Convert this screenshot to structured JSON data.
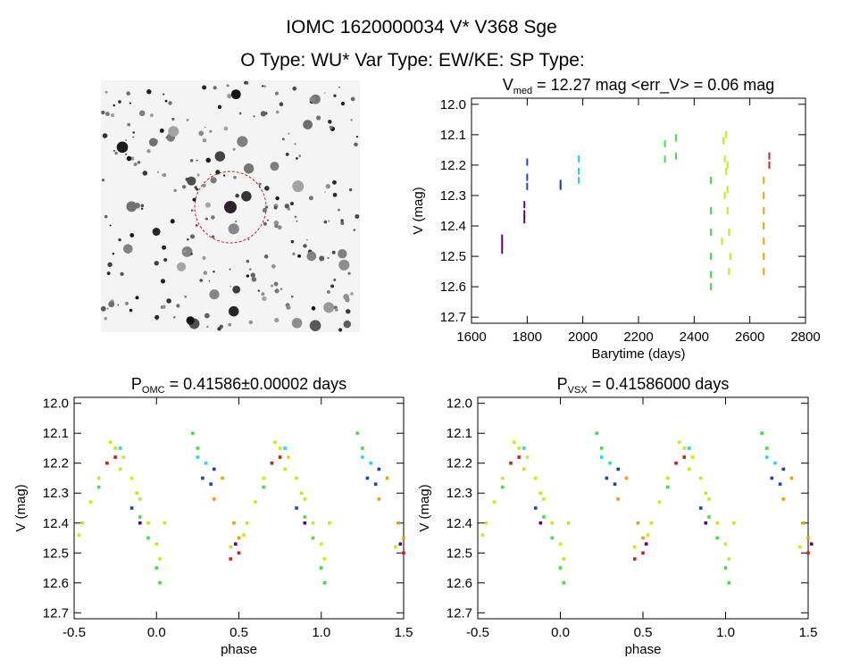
{
  "header": {
    "line1": "IOMC 1620000034    V* V368 Sge",
    "line2": "O Type: WU*  Var Type: EW/KE:  SP Type:"
  },
  "chart_data": [
    {
      "type": "scatter",
      "title": {
        "main": "V",
        "sub": "med",
        "rest": " = 12.27 mag <err_V> = 0.06 mag"
      },
      "x_label": "Barytime (days)",
      "y_label": "V (mag)",
      "xlim": [
        1600,
        2800
      ],
      "xticks": [
        1600,
        1800,
        2000,
        2200,
        2400,
        2600,
        2800
      ],
      "ylim": [
        11.98,
        12.72
      ],
      "y_inverted": true,
      "yticks": [
        {
          "value": 12,
          "label": "12.0"
        },
        12.1,
        12.2,
        12.3,
        12.4,
        12.5,
        12.6,
        12.7
      ],
      "marker": "dash",
      "series": [
        {
          "name": "purple",
          "color": "#600080",
          "x": [
            1710,
            1710,
            1710,
            1790,
            1790,
            1790
          ],
          "values": [
            12.44,
            12.46,
            12.48,
            12.33,
            12.36,
            12.38
          ]
        },
        {
          "name": "blue",
          "color": "#2040c0",
          "x": [
            1800,
            1800,
            1800,
            1920,
            1920
          ],
          "values": [
            12.19,
            12.24,
            12.27,
            12.26,
            12.27
          ]
        },
        {
          "name": "cyan",
          "color": "#20d8f0",
          "x": [
            1985,
            1985,
            1985
          ],
          "values": [
            12.18,
            12.22,
            12.25
          ]
        },
        {
          "name": "green",
          "color": "#40e040",
          "x": [
            2295,
            2295,
            2335,
            2335,
            2460,
            2460,
            2460,
            2460,
            2460,
            2460
          ],
          "values": [
            12.13,
            12.18,
            12.11,
            12.17,
            12.25,
            12.35,
            12.42,
            12.5,
            12.56,
            12.6
          ]
        },
        {
          "name": "yellow-green",
          "color": "#c0ee10",
          "x": [
            2505,
            2510,
            2515,
            2520,
            2520,
            2525,
            2530,
            2510,
            2515,
            2520,
            2500,
            2525
          ],
          "values": [
            12.12,
            12.18,
            12.22,
            12.28,
            12.35,
            12.42,
            12.5,
            12.3,
            12.1,
            12.2,
            12.45,
            12.55
          ]
        },
        {
          "name": "orange",
          "color": "#f0a000",
          "x": [
            2650,
            2650,
            2650,
            2650,
            2650,
            2650,
            2650
          ],
          "values": [
            12.25,
            12.3,
            12.35,
            12.4,
            12.45,
            12.5,
            12.55
          ]
        },
        {
          "name": "red",
          "color": "#d02020",
          "x": [
            2670,
            2670
          ],
          "values": [
            12.17,
            12.2
          ]
        }
      ]
    },
    {
      "type": "scatter",
      "title": {
        "main": "P",
        "sub": "OMC",
        "rest": " = 0.41586±0.00002 days"
      },
      "x_label": "phase",
      "y_label": "V (mag)",
      "xlim": [
        -0.5,
        1.5
      ],
      "xticks": [
        -0.5,
        {
          "value": 0,
          "label": "0.0"
        },
        0.5,
        {
          "value": 1,
          "label": "1.0"
        },
        1.5
      ],
      "ylim": [
        11.98,
        12.72
      ],
      "y_inverted": true,
      "yticks": [
        {
          "value": 12,
          "label": "12.0"
        },
        12.1,
        12.2,
        12.3,
        12.4,
        12.5,
        12.6,
        12.7
      ],
      "marker": "dot",
      "series": [
        {
          "name": "yellow-green",
          "color": "#c0ee10",
          "x": [
            -0.45,
            -0.4,
            -0.35,
            -0.3,
            -0.25,
            -0.2,
            -0.15,
            -0.1,
            -0.05,
            0,
            0.05,
            -0.28,
            -0.22,
            -0.12,
            0.02,
            0.55,
            0.6,
            0.65,
            0.7,
            0.75,
            0.8,
            0.85,
            0.9,
            0.95,
            1,
            1.05,
            0.72,
            0.78,
            0.88,
            1.02,
            0.45,
            1.45,
            -0.47,
            0.53
          ],
          "values": [
            12.4,
            12.33,
            12.25,
            12.2,
            12.15,
            12.18,
            12.25,
            12.32,
            12.4,
            12.47,
            12.4,
            12.13,
            12.22,
            12.3,
            12.52,
            12.4,
            12.33,
            12.25,
            12.2,
            12.15,
            12.18,
            12.25,
            12.32,
            12.4,
            12.47,
            12.4,
            12.13,
            12.22,
            12.3,
            12.52,
            12.48,
            12.48,
            12.44,
            12.44
          ]
        },
        {
          "name": "green",
          "color": "#40e040",
          "x": [
            -0.05,
            0,
            0.02,
            -0.1,
            0.22,
            0.25,
            0.95,
            1,
            1.02,
            0.9,
            1.22,
            1.25,
            -0.35,
            0.65
          ],
          "values": [
            12.45,
            12.55,
            12.6,
            12.38,
            12.1,
            12.15,
            12.45,
            12.55,
            12.6,
            12.38,
            12.1,
            12.15,
            12.28,
            12.28
          ]
        },
        {
          "name": "orange",
          "color": "#f0a000",
          "x": [
            0.35,
            0.4,
            0.47,
            1.35,
            1.4,
            1.47,
            -0.25,
            0.75,
            0.5,
            1.5
          ],
          "values": [
            12.32,
            12.25,
            12.4,
            12.32,
            12.25,
            12.4,
            12.18,
            12.18,
            12.45,
            12.45
          ]
        },
        {
          "name": "cyan",
          "color": "#20d8f0",
          "x": [
            0.25,
            0.3,
            1.25,
            1.3,
            -0.22,
            0.78
          ],
          "values": [
            12.18,
            12.2,
            12.18,
            12.2,
            12.15,
            12.15
          ]
        },
        {
          "name": "blue",
          "color": "#2040c0",
          "x": [
            0.28,
            0.33,
            0.35,
            1.28,
            1.33,
            1.35,
            -0.15,
            0.85
          ],
          "values": [
            12.25,
            12.27,
            12.22,
            12.25,
            12.27,
            12.22,
            12.35,
            12.35
          ]
        },
        {
          "name": "red",
          "color": "#d02020",
          "x": [
            -0.3,
            -0.25,
            0.5,
            0.7,
            0.75,
            1.5,
            0.45
          ],
          "values": [
            12.2,
            12.18,
            12.5,
            12.2,
            12.18,
            12.5,
            12.52
          ]
        },
        {
          "name": "purple",
          "color": "#600080",
          "x": [
            -0.1,
            0.48,
            0.9,
            1.48
          ],
          "values": [
            12.4,
            12.47,
            12.4,
            12.47
          ]
        }
      ]
    },
    {
      "type": "scatter",
      "title": {
        "main": "P",
        "sub": "VSX",
        "rest": " = 0.41586000 days"
      },
      "x_label": "phase",
      "y_label": "V (mag)",
      "xlim": [
        -0.5,
        1.5
      ],
      "xticks": [
        -0.5,
        {
          "value": 0,
          "label": "0.0"
        },
        0.5,
        {
          "value": 1,
          "label": "1.0"
        },
        1.5
      ],
      "ylim": [
        11.98,
        12.72
      ],
      "y_inverted": true,
      "yticks": [
        {
          "value": 12,
          "label": "12.0"
        },
        12.1,
        12.2,
        12.3,
        12.4,
        12.5,
        12.6,
        12.7
      ],
      "marker": "dot",
      "series": [
        {
          "name": "yellow-green",
          "color": "#c0ee10",
          "x": [
            -0.45,
            -0.4,
            -0.35,
            -0.3,
            -0.25,
            -0.2,
            -0.15,
            -0.1,
            -0.05,
            0,
            0.05,
            -0.28,
            -0.22,
            -0.12,
            0.02,
            0.55,
            0.6,
            0.65,
            0.7,
            0.75,
            0.8,
            0.85,
            0.9,
            0.95,
            1,
            1.05,
            0.72,
            0.78,
            0.88,
            1.02,
            0.45,
            1.45,
            -0.47,
            0.53
          ],
          "values": [
            12.4,
            12.33,
            12.25,
            12.2,
            12.15,
            12.18,
            12.25,
            12.32,
            12.4,
            12.47,
            12.4,
            12.13,
            12.22,
            12.3,
            12.52,
            12.4,
            12.33,
            12.25,
            12.2,
            12.15,
            12.18,
            12.25,
            12.32,
            12.4,
            12.47,
            12.4,
            12.13,
            12.22,
            12.3,
            12.52,
            12.48,
            12.48,
            12.44,
            12.44
          ]
        },
        {
          "name": "green",
          "color": "#40e040",
          "x": [
            -0.05,
            0,
            0.02,
            -0.1,
            0.22,
            0.25,
            0.95,
            1,
            1.02,
            0.9,
            1.22,
            1.25,
            -0.35,
            0.65
          ],
          "values": [
            12.45,
            12.55,
            12.6,
            12.38,
            12.1,
            12.15,
            12.45,
            12.55,
            12.6,
            12.38,
            12.1,
            12.15,
            12.28,
            12.28
          ]
        },
        {
          "name": "orange",
          "color": "#f0a000",
          "x": [
            0.35,
            0.4,
            0.47,
            1.35,
            1.4,
            1.47,
            -0.25,
            0.75,
            0.5,
            1.5
          ],
          "values": [
            12.32,
            12.25,
            12.4,
            12.32,
            12.25,
            12.4,
            12.18,
            12.18,
            12.45,
            12.45
          ]
        },
        {
          "name": "cyan",
          "color": "#20d8f0",
          "x": [
            0.25,
            0.3,
            1.25,
            1.3,
            -0.22,
            0.78
          ],
          "values": [
            12.18,
            12.2,
            12.18,
            12.2,
            12.15,
            12.15
          ]
        },
        {
          "name": "blue",
          "color": "#2040c0",
          "x": [
            0.28,
            0.33,
            0.35,
            1.28,
            1.33,
            1.35,
            -0.15,
            0.85
          ],
          "values": [
            12.25,
            12.27,
            12.22,
            12.25,
            12.27,
            12.22,
            12.35,
            12.35
          ]
        },
        {
          "name": "red",
          "color": "#d02020",
          "x": [
            -0.3,
            -0.25,
            0.5,
            0.7,
            0.75,
            1.5,
            0.45
          ],
          "values": [
            12.2,
            12.18,
            12.5,
            12.2,
            12.18,
            12.5,
            12.52
          ]
        },
        {
          "name": "purple",
          "color": "#600080",
          "x": [
            -0.12,
            0.52,
            0.88,
            1.52
          ],
          "values": [
            12.4,
            12.47,
            12.4,
            12.47
          ]
        }
      ]
    }
  ]
}
